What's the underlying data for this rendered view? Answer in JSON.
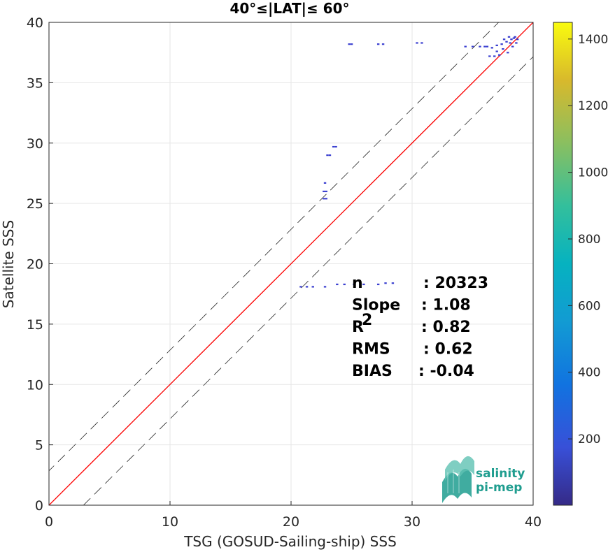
{
  "chart_data": {
    "type": "scatter",
    "title": "40°≤|LAT|≤ 60°",
    "xlabel": "TSG (GOSUD-Sailing-ship) SSS",
    "ylabel": "Satellite SSS",
    "xlim": [
      0,
      40
    ],
    "ylim": [
      0,
      40
    ],
    "xticks": [
      "0",
      "10",
      "20",
      "30",
      "40"
    ],
    "yticks": [
      "0",
      "5",
      "10",
      "15",
      "20",
      "25",
      "30",
      "35",
      "40"
    ],
    "grid": true,
    "colorbar": {
      "ticks": [
        "200",
        "400",
        "600",
        "800",
        "1000",
        "1200",
        "1400"
      ],
      "tick_values": [
        200,
        400,
        600,
        800,
        1000,
        1200,
        1400
      ],
      "range": [
        1,
        1450
      ],
      "colormap": "parula"
    },
    "stats": [
      {
        "label": "n",
        "value": ": 20323"
      },
      {
        "label": "Slope",
        "value": ": 1.08"
      },
      {
        "label": "R",
        "sup": "2",
        "value": ": 0.82"
      },
      {
        "label": "RMS",
        "value": ": 0.62"
      },
      {
        "label": "BIAS",
        "value": ": -0.04"
      }
    ],
    "fit_line": {
      "slope": 1.08,
      "intercept": -3.2,
      "color": "#ff0000"
    },
    "one_to_one_line": {
      "slope": 1,
      "intercept": 0,
      "color": "#000000"
    },
    "offset_lines": [
      1.5,
      -1.5
    ],
    "points": [
      [
        24.8,
        38.2
      ],
      [
        25.0,
        38.2
      ],
      [
        27.2,
        38.2
      ],
      [
        27.6,
        38.2
      ],
      [
        30.4,
        38.3
      ],
      [
        30.8,
        38.3
      ],
      [
        34.4,
        38.0
      ],
      [
        35.0,
        38.0
      ],
      [
        35.6,
        38.0
      ],
      [
        36.2,
        38.0
      ],
      [
        36.6,
        37.9
      ],
      [
        37.0,
        38.1
      ],
      [
        37.4,
        38.2
      ],
      [
        37.8,
        38.4
      ],
      [
        38.2,
        38.6
      ],
      [
        38.5,
        38.8
      ],
      [
        38.7,
        38.6
      ],
      [
        37.6,
        38.6
      ],
      [
        38.0,
        38.8
      ],
      [
        36.8,
        37.2
      ],
      [
        37.2,
        37.3
      ],
      [
        37.9,
        37.5
      ],
      [
        38.3,
        38.0
      ],
      [
        38.6,
        38.3
      ],
      [
        36.4,
        37.2
      ],
      [
        37.5,
        37.8
      ],
      [
        38.1,
        38.3
      ],
      [
        38.4,
        38.7
      ],
      [
        36.0,
        38.0
      ],
      [
        37.0,
        37.6
      ],
      [
        23.0,
        29.0
      ],
      [
        23.2,
        29.0
      ],
      [
        23.5,
        29.7
      ],
      [
        23.7,
        29.7
      ],
      [
        22.8,
        26.7
      ],
      [
        22.7,
        26.0
      ],
      [
        22.9,
        26.0
      ],
      [
        22.7,
        25.4
      ],
      [
        22.9,
        25.4
      ],
      [
        20.8,
        18.1
      ],
      [
        21.3,
        18.1
      ],
      [
        21.8,
        18.1
      ],
      [
        22.8,
        18.1
      ],
      [
        23.8,
        18.3
      ],
      [
        24.4,
        18.3
      ],
      [
        25.2,
        18.3
      ],
      [
        26.0,
        18.3
      ],
      [
        27.2,
        18.3
      ],
      [
        27.8,
        18.4
      ],
      [
        28.4,
        18.4
      ]
    ]
  },
  "logo": {
    "line1": "salinity",
    "line2": "pi-mep"
  }
}
